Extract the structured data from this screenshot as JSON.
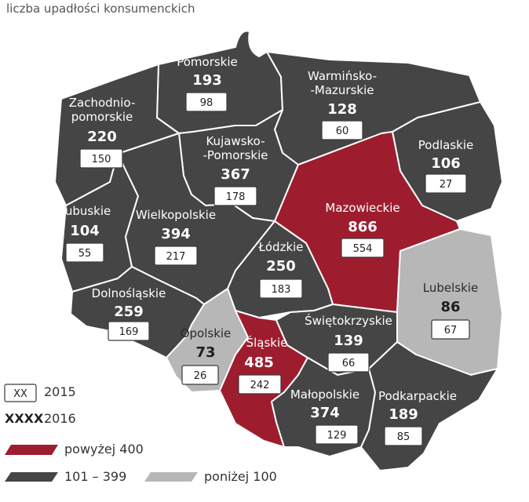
{
  "title": "liczba upadłości konsumenckich",
  "colors": {
    "high": "#9d1d2e",
    "mid": "#454545",
    "low": "#b7b7b7",
    "border": "#ffffff"
  },
  "regions": [
    {
      "id": "pomorskie",
      "name": [
        "Pomorskie"
      ],
      "v2016": "193",
      "v2015": "98",
      "cls": "mid"
    },
    {
      "id": "warminsko-mazurskie",
      "name": [
        "Warmińsko-",
        "-Mazurskie"
      ],
      "v2016": "128",
      "v2015": "60",
      "cls": "mid"
    },
    {
      "id": "zachodniopomorskie",
      "name": [
        "Zachodnio-",
        "pomorskie"
      ],
      "v2016": "220",
      "v2015": "150",
      "cls": "mid"
    },
    {
      "id": "kujawsko-pomorskie",
      "name": [
        "Kujawsko-",
        "-Pomorskie"
      ],
      "v2016": "367",
      "v2015": "178",
      "cls": "mid"
    },
    {
      "id": "podlaskie",
      "name": [
        "Podlaskie"
      ],
      "v2016": "106",
      "v2015": "27",
      "cls": "mid"
    },
    {
      "id": "mazowieckie",
      "name": [
        "Mazowieckie"
      ],
      "v2016": "866",
      "v2015": "554",
      "cls": "high"
    },
    {
      "id": "lubuskie",
      "name": [
        "Lubuskie"
      ],
      "v2016": "104",
      "v2015": "55",
      "cls": "mid"
    },
    {
      "id": "wielkopolskie",
      "name": [
        "Wielkopolskie"
      ],
      "v2016": "394",
      "v2015": "217",
      "cls": "mid"
    },
    {
      "id": "lodzkie",
      "name": [
        "Łódzkie"
      ],
      "v2016": "250",
      "v2015": "183",
      "cls": "mid"
    },
    {
      "id": "lubelskie",
      "name": [
        "Lubelskie"
      ],
      "v2016": "86",
      "v2015": "67",
      "cls": "low"
    },
    {
      "id": "dolnoslaskie",
      "name": [
        "Dolnośląskie"
      ],
      "v2016": "259",
      "v2015": "169",
      "cls": "mid"
    },
    {
      "id": "opolskie",
      "name": [
        "Opolskie"
      ],
      "v2016": "73",
      "v2015": "26",
      "cls": "low"
    },
    {
      "id": "slaskie",
      "name": [
        "Śląskie"
      ],
      "v2016": "485",
      "v2015": "242",
      "cls": "high"
    },
    {
      "id": "swietokrzyskie",
      "name": [
        "Świętokrzyskie"
      ],
      "v2016": "139",
      "v2015": "66",
      "cls": "mid"
    },
    {
      "id": "malopolskie",
      "name": [
        "Małopolskie"
      ],
      "v2016": "374",
      "v2015": "129",
      "cls": "mid"
    },
    {
      "id": "podkarpackie",
      "name": [
        "Podkarpackie"
      ],
      "v2016": "189",
      "v2015": "85",
      "cls": "mid"
    }
  ],
  "legend": {
    "box_sample": "XX",
    "box_label": "2015",
    "bold_sample": "XXXX",
    "bold_label": "2016",
    "high_label": "powyżej 400",
    "mid_label": "101 – 399",
    "low_label": "poniżej 100"
  }
}
